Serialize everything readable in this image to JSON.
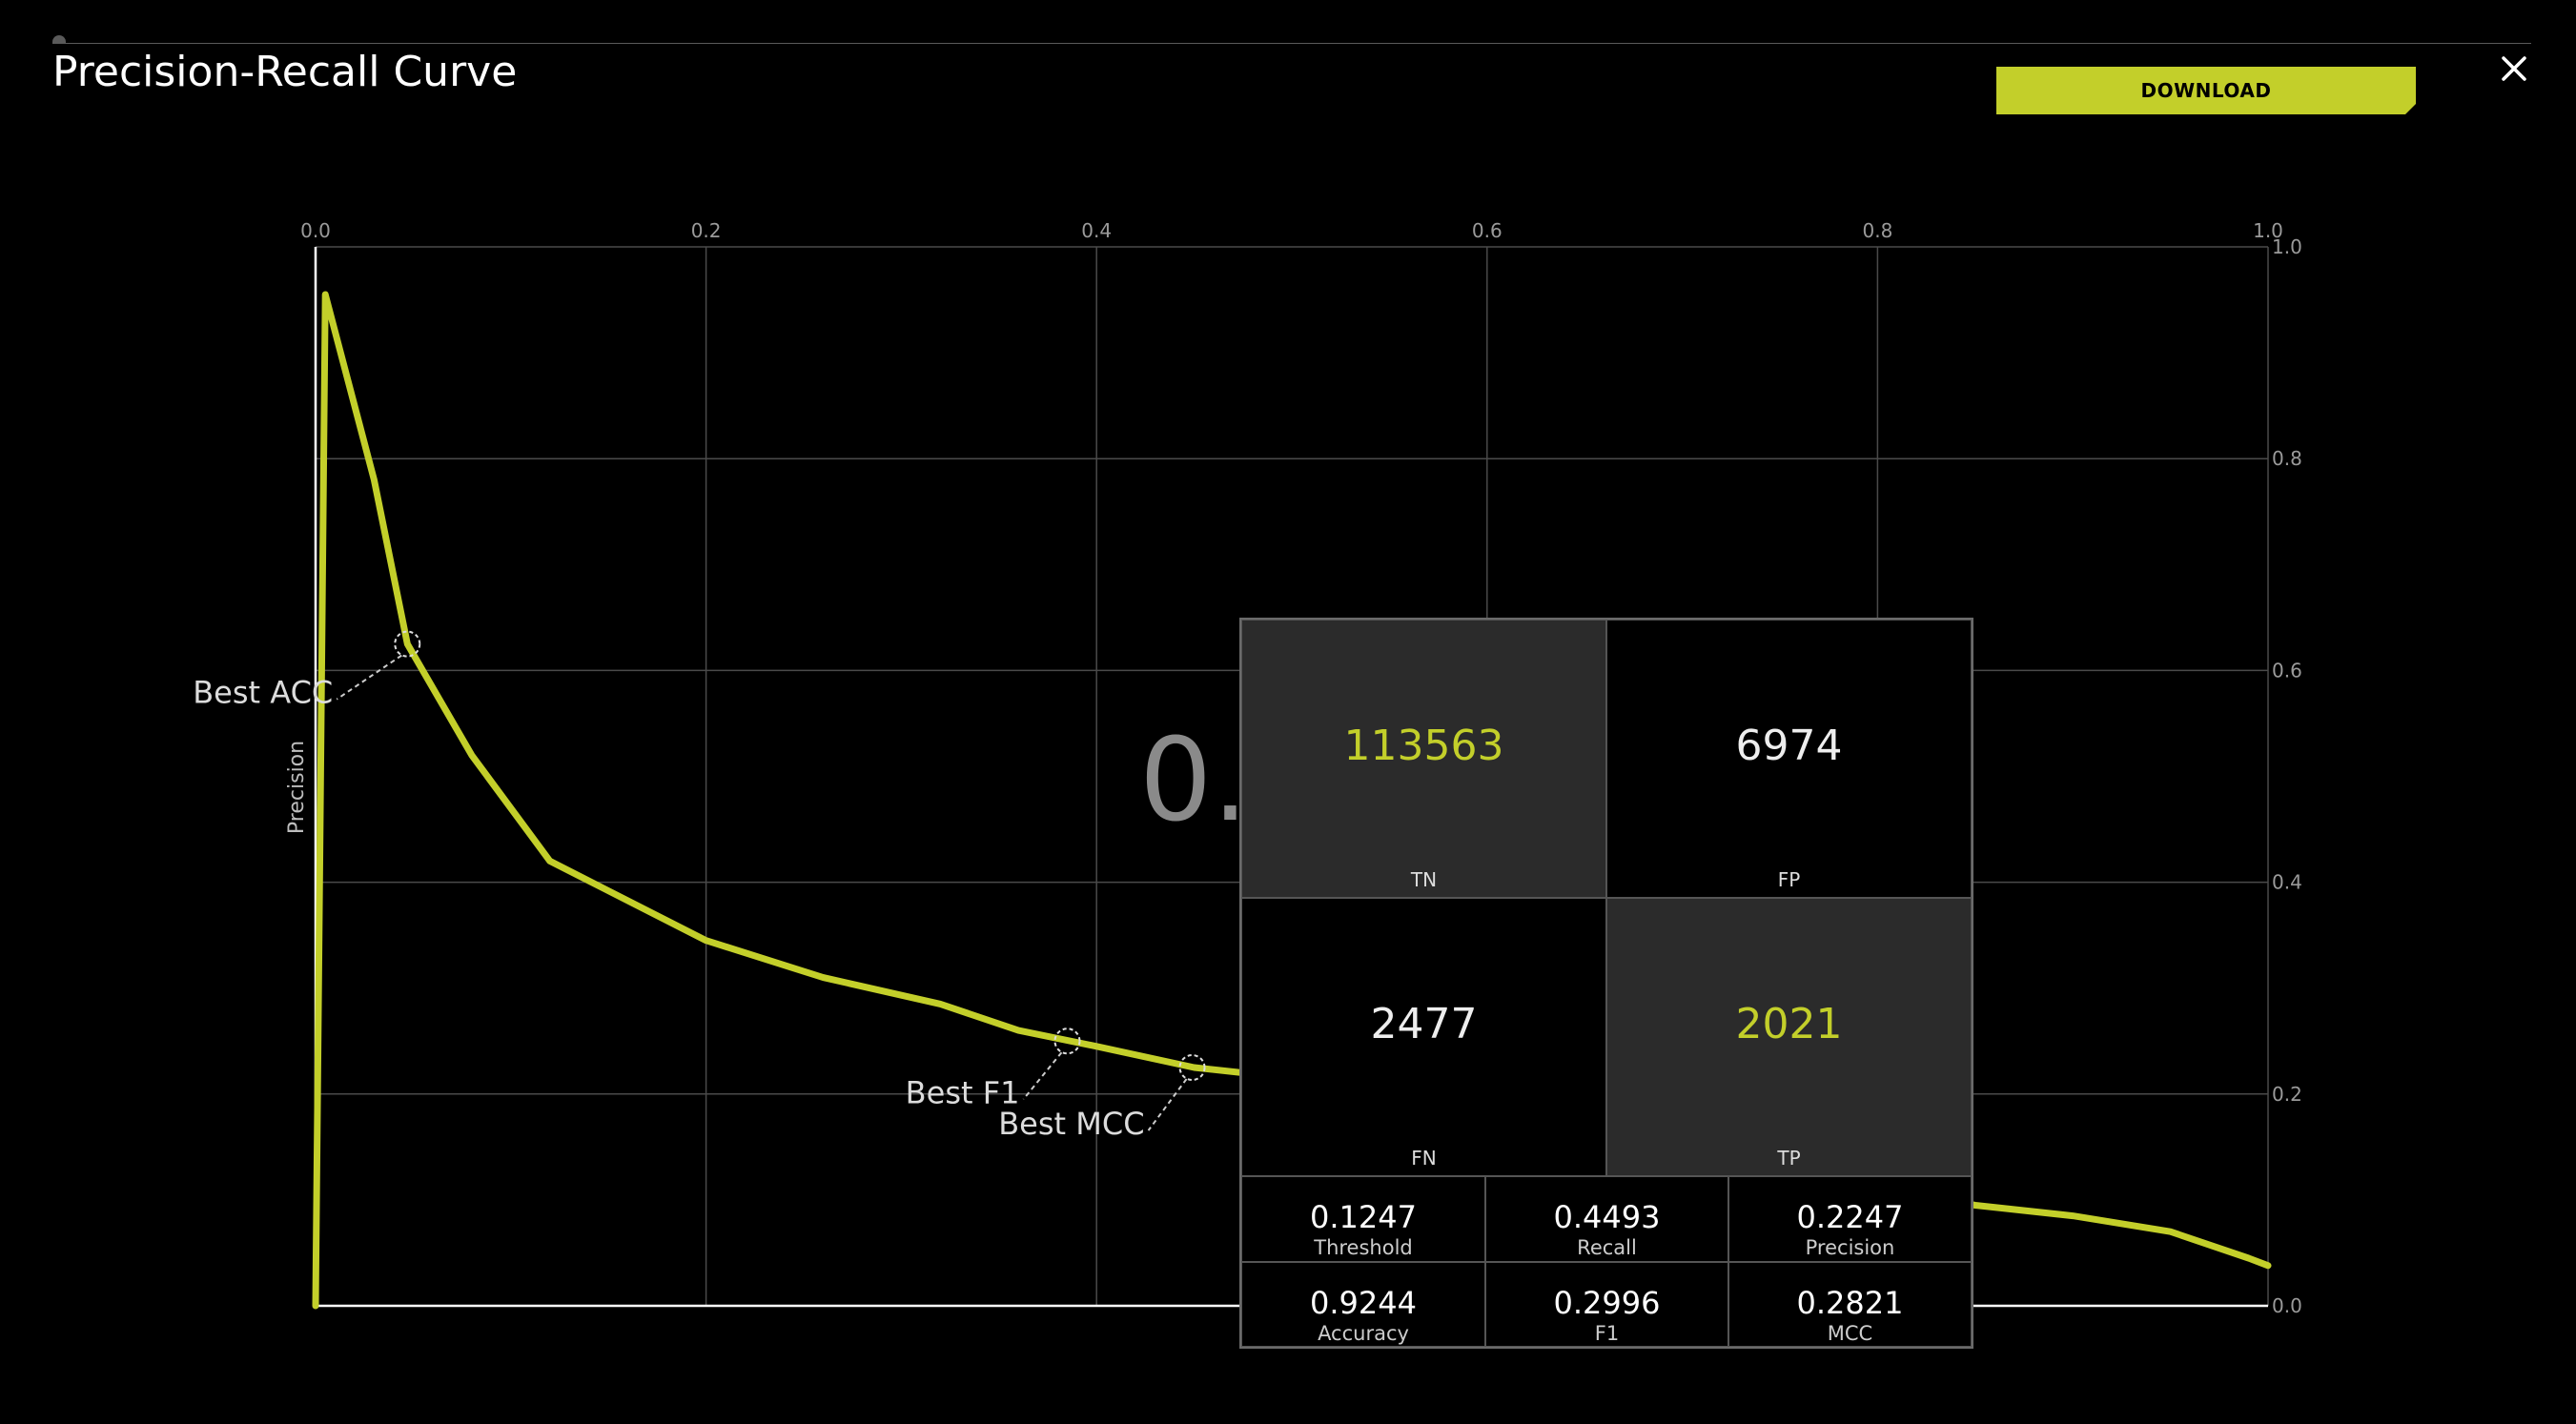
{
  "title": "Precision-Recall Curve",
  "download_label": "DOWNLOAD",
  "chart_data": {
    "type": "line",
    "xlim": [
      0,
      1
    ],
    "ylim": [
      0,
      1
    ],
    "x_ticks": [
      "0.0",
      "0.2",
      "0.4",
      "0.6",
      "0.8",
      "1.0"
    ],
    "y_ticks": [
      "0.0",
      "0.2",
      "0.4",
      "0.6",
      "0.8",
      "1.0"
    ],
    "ylabel": "Precision",
    "xlabel": "",
    "grid": true,
    "color": "#c3cf2a",
    "series": [
      {
        "x": [
          0.0,
          0.005,
          0.03,
          0.047,
          0.08,
          0.12,
          0.2,
          0.26,
          0.32,
          0.36,
          0.4,
          0.45,
          0.5,
          0.85,
          0.9,
          0.95,
          0.99,
          1.0
        ],
        "y": [
          0.0,
          0.955,
          0.78,
          0.625,
          0.52,
          0.42,
          0.345,
          0.31,
          0.285,
          0.26,
          0.245,
          0.225,
          0.215,
          0.095,
          0.085,
          0.07,
          0.045,
          0.038
        ]
      }
    ],
    "annotations": [
      {
        "label": "Best ACC",
        "x": 0.047,
        "y": 0.625
      },
      {
        "label": "Best F1",
        "x": 0.385,
        "y": 0.25
      },
      {
        "label": "Best MCC",
        "x": 0.449,
        "y": 0.225
      }
    ],
    "background_value_text": "0."
  },
  "confusion_matrix": {
    "tn": {
      "value": "113563",
      "label": "TN"
    },
    "fp": {
      "value": "6974",
      "label": "FP"
    },
    "fn": {
      "value": "2477",
      "label": "FN"
    },
    "tp": {
      "value": "2021",
      "label": "TP"
    }
  },
  "metrics": [
    {
      "value": "0.1247",
      "label": "Threshold"
    },
    {
      "value": "0.4493",
      "label": "Recall"
    },
    {
      "value": "0.2247",
      "label": "Precision"
    },
    {
      "value": "0.9244",
      "label": "Accuracy"
    },
    {
      "value": "0.2996",
      "label": "F1"
    },
    {
      "value": "0.2821",
      "label": "MCC"
    }
  ]
}
